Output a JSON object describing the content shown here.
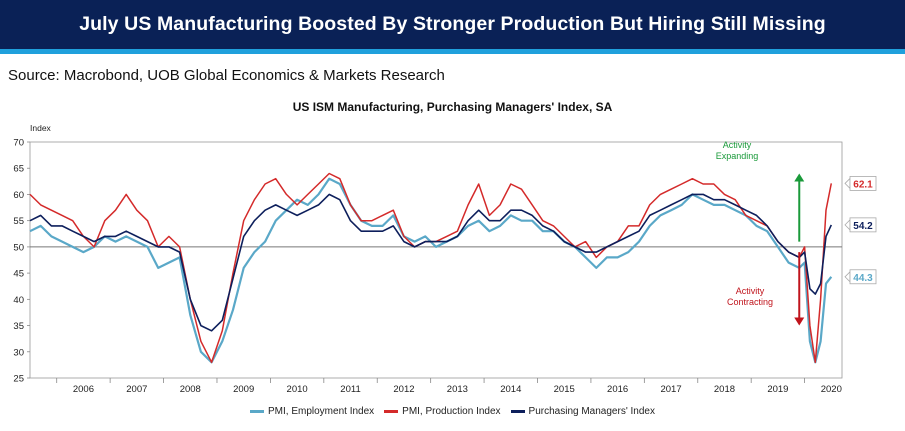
{
  "header": {
    "title": "July US Manufacturing Boosted By Stronger Production But Hiring Still Missing"
  },
  "source": "Source: Macrobond, UOB Global Economics & Markets Research",
  "chart_data": {
    "type": "line",
    "title": "US ISM Manufacturing, Purchasing Managers' Index, SA",
    "ylabel": "Index",
    "xlabel": "",
    "ylim": [
      25,
      70
    ],
    "xlim": [
      2005.5,
      2020.7
    ],
    "yticks": [
      25,
      30,
      35,
      40,
      45,
      50,
      55,
      60,
      65,
      70
    ],
    "xticks": [
      "2006",
      "2007",
      "2008",
      "2009",
      "2010",
      "2011",
      "2012",
      "2013",
      "2014",
      "2015",
      "2016",
      "2017",
      "2018",
      "2019",
      "2020"
    ],
    "grid": false,
    "legend": "bottom",
    "reference_line": 50,
    "colors": {
      "employment": "#5aa8c8",
      "production": "#d42a2a",
      "pmi": "#0d1f5c"
    },
    "series": [
      {
        "name": "PMI, Employment Index",
        "key": "employment",
        "x": [
          2005.5,
          2005.7,
          2005.9,
          2006.1,
          2006.3,
          2006.5,
          2006.7,
          2006.9,
          2007.1,
          2007.3,
          2007.5,
          2007.7,
          2007.9,
          2008.1,
          2008.3,
          2008.5,
          2008.7,
          2008.9,
          2009.1,
          2009.3,
          2009.5,
          2009.7,
          2009.9,
          2010.1,
          2010.3,
          2010.5,
          2010.7,
          2010.9,
          2011.1,
          2011.3,
          2011.5,
          2011.7,
          2011.9,
          2012.1,
          2012.3,
          2012.5,
          2012.7,
          2012.9,
          2013.1,
          2013.3,
          2013.5,
          2013.7,
          2013.9,
          2014.1,
          2014.3,
          2014.5,
          2014.7,
          2014.9,
          2015.1,
          2015.3,
          2015.5,
          2015.7,
          2015.9,
          2016.1,
          2016.3,
          2016.5,
          2016.7,
          2016.9,
          2017.1,
          2017.3,
          2017.5,
          2017.7,
          2017.9,
          2018.1,
          2018.3,
          2018.5,
          2018.7,
          2018.9,
          2019.1,
          2019.3,
          2019.5,
          2019.7,
          2019.9,
          2020.0,
          2020.1,
          2020.2,
          2020.3,
          2020.4,
          2020.5
        ],
        "values": [
          53,
          54,
          52,
          51,
          50,
          49,
          50,
          52,
          51,
          52,
          51,
          50,
          46,
          47,
          48,
          37,
          30,
          28,
          32,
          38,
          46,
          49,
          51,
          55,
          57,
          59,
          58,
          60,
          63,
          62,
          58,
          55,
          54,
          54,
          56,
          52,
          51,
          52,
          50,
          51,
          52,
          54,
          55,
          53,
          54,
          56,
          55,
          55,
          53,
          53,
          51,
          50,
          48,
          46,
          48,
          48,
          49,
          51,
          54,
          56,
          57,
          58,
          60,
          59,
          58,
          58,
          57,
          56,
          54,
          53,
          50,
          47,
          46,
          47,
          32,
          28,
          32,
          43,
          44.3
        ]
      },
      {
        "name": "PMI, Production Index",
        "key": "production",
        "x": [
          2005.5,
          2005.7,
          2005.9,
          2006.1,
          2006.3,
          2006.5,
          2006.7,
          2006.9,
          2007.1,
          2007.3,
          2007.5,
          2007.7,
          2007.9,
          2008.1,
          2008.3,
          2008.5,
          2008.7,
          2008.9,
          2009.1,
          2009.3,
          2009.5,
          2009.7,
          2009.9,
          2010.1,
          2010.3,
          2010.5,
          2010.7,
          2010.9,
          2011.1,
          2011.3,
          2011.5,
          2011.7,
          2011.9,
          2012.1,
          2012.3,
          2012.5,
          2012.7,
          2012.9,
          2013.1,
          2013.3,
          2013.5,
          2013.7,
          2013.9,
          2014.1,
          2014.3,
          2014.5,
          2014.7,
          2014.9,
          2015.1,
          2015.3,
          2015.5,
          2015.7,
          2015.9,
          2016.1,
          2016.3,
          2016.5,
          2016.7,
          2016.9,
          2017.1,
          2017.3,
          2017.5,
          2017.7,
          2017.9,
          2018.1,
          2018.3,
          2018.5,
          2018.7,
          2018.9,
          2019.1,
          2019.3,
          2019.5,
          2019.7,
          2019.9,
          2020.0,
          2020.1,
          2020.2,
          2020.3,
          2020.4,
          2020.5
        ],
        "values": [
          60,
          58,
          57,
          56,
          55,
          52,
          50,
          55,
          57,
          60,
          57,
          55,
          50,
          52,
          50,
          40,
          32,
          28,
          34,
          45,
          55,
          59,
          62,
          63,
          60,
          58,
          60,
          62,
          64,
          63,
          58,
          55,
          55,
          56,
          57,
          52,
          50,
          51,
          51,
          52,
          53,
          58,
          62,
          56,
          58,
          62,
          61,
          58,
          55,
          54,
          52,
          50,
          51,
          48,
          50,
          51,
          54,
          54,
          58,
          60,
          61,
          62,
          63,
          62,
          62,
          60,
          59,
          56,
          55,
          54,
          51,
          49,
          48,
          50,
          35,
          28,
          40,
          57,
          62.1
        ]
      },
      {
        "name": "Purchasing Managers' Index",
        "key": "pmi",
        "x": [
          2005.5,
          2005.7,
          2005.9,
          2006.1,
          2006.3,
          2006.5,
          2006.7,
          2006.9,
          2007.1,
          2007.3,
          2007.5,
          2007.7,
          2007.9,
          2008.1,
          2008.3,
          2008.5,
          2008.7,
          2008.9,
          2009.1,
          2009.3,
          2009.5,
          2009.7,
          2009.9,
          2010.1,
          2010.3,
          2010.5,
          2010.7,
          2010.9,
          2011.1,
          2011.3,
          2011.5,
          2011.7,
          2011.9,
          2012.1,
          2012.3,
          2012.5,
          2012.7,
          2012.9,
          2013.1,
          2013.3,
          2013.5,
          2013.7,
          2013.9,
          2014.1,
          2014.3,
          2014.5,
          2014.7,
          2014.9,
          2015.1,
          2015.3,
          2015.5,
          2015.7,
          2015.9,
          2016.1,
          2016.3,
          2016.5,
          2016.7,
          2016.9,
          2017.1,
          2017.3,
          2017.5,
          2017.7,
          2017.9,
          2018.1,
          2018.3,
          2018.5,
          2018.7,
          2018.9,
          2019.1,
          2019.3,
          2019.5,
          2019.7,
          2019.9,
          2020.0,
          2020.1,
          2020.2,
          2020.3,
          2020.4,
          2020.5
        ],
        "values": [
          55,
          56,
          54,
          54,
          53,
          52,
          51,
          52,
          52,
          53,
          52,
          51,
          50,
          50,
          49,
          40,
          35,
          34,
          36,
          44,
          52,
          55,
          57,
          58,
          57,
          56,
          57,
          58,
          60,
          59,
          55,
          53,
          53,
          53,
          54,
          51,
          50,
          51,
          51,
          51,
          52,
          55,
          57,
          55,
          55,
          57,
          57,
          56,
          54,
          53,
          51,
          50,
          49,
          49,
          50,
          51,
          52,
          53,
          56,
          57,
          58,
          59,
          60,
          60,
          59,
          59,
          58,
          57,
          56,
          54,
          51,
          49,
          48,
          49,
          42,
          41,
          43,
          52,
          54.2
        ]
      }
    ],
    "end_labels": [
      {
        "key": "production",
        "value": "62.1"
      },
      {
        "key": "pmi",
        "value": "54.2"
      },
      {
        "key": "employment",
        "value": "44.3"
      }
    ],
    "annotations": [
      {
        "text": [
          "Activity",
          "Expanding"
        ],
        "color": "#1a9a3a",
        "direction": "up",
        "arrow_from": 51,
        "arrow_to": 64
      },
      {
        "text": [
          "Activity",
          "Contracting"
        ],
        "color": "#c0141c",
        "direction": "down",
        "arrow_from": 49,
        "arrow_to": 35
      }
    ]
  }
}
